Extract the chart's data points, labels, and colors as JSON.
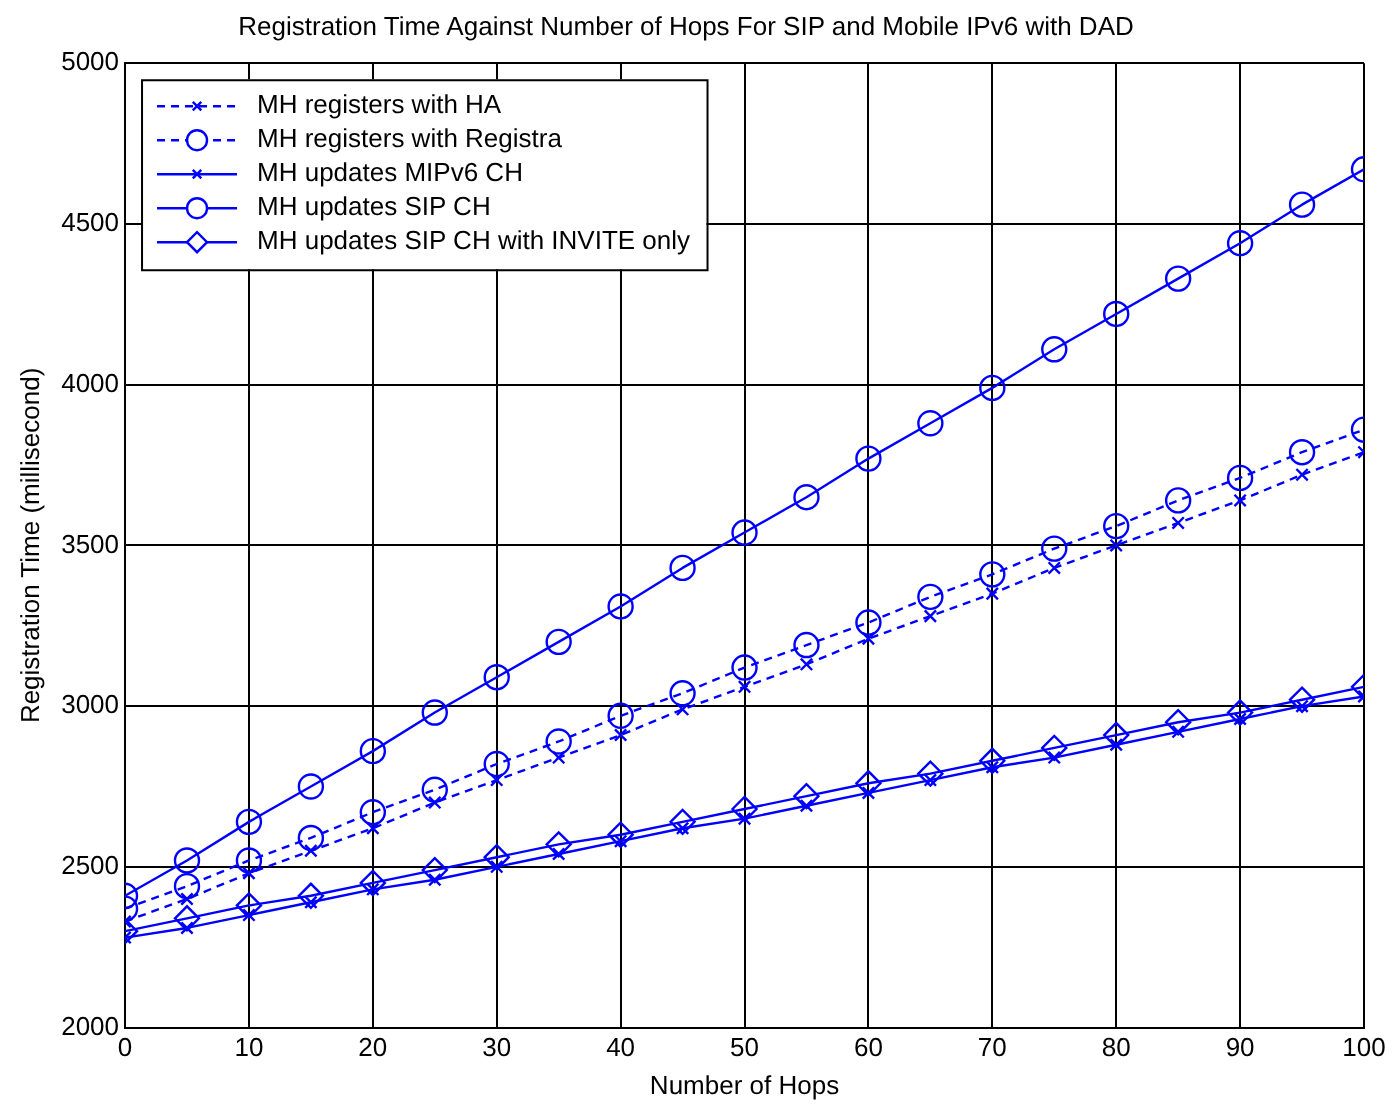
{
  "chart_data": {
    "type": "line",
    "title": "Registration Time Against Number of Hops For SIP and Mobile IPv6 with DAD",
    "xlabel": "Number of Hops",
    "ylabel": "Registration Time (millisecond)",
    "x": [
      0,
      5,
      10,
      15,
      20,
      25,
      30,
      35,
      40,
      45,
      50,
      55,
      60,
      65,
      70,
      75,
      80,
      85,
      90,
      95,
      100
    ],
    "series": [
      {
        "name": "MH registers with HA",
        "color": "#0000ff",
        "marker": "cross",
        "line_style": "dashed",
        "values": [
          2330,
          2400,
          2480,
          2550,
          2620,
          2700,
          2770,
          2840,
          2910,
          2990,
          3060,
          3130,
          3210,
          3280,
          3350,
          3430,
          3500,
          3570,
          3640,
          3720,
          3790
        ]
      },
      {
        "name": "MH registers with Registra",
        "color": "#0000ff",
        "marker": "circle",
        "line_style": "dashed",
        "values": [
          2370,
          2440,
          2520,
          2590,
          2670,
          2740,
          2820,
          2890,
          2970,
          3040,
          3120,
          3190,
          3260,
          3340,
          3410,
          3490,
          3560,
          3640,
          3710,
          3790,
          3860
        ]
      },
      {
        "name": "MH updates MIPv6 CH",
        "color": "#0000ff",
        "marker": "cross",
        "line_style": "solid",
        "values": [
          2280,
          2310,
          2350,
          2390,
          2430,
          2460,
          2500,
          2540,
          2580,
          2620,
          2650,
          2690,
          2730,
          2770,
          2810,
          2840,
          2880,
          2920,
          2960,
          3000,
          3030
        ]
      },
      {
        "name": "MH updates SIP CH",
        "color": "#0000ff",
        "marker": "circle",
        "line_style": "solid",
        "values": [
          2410,
          2520,
          2640,
          2750,
          2860,
          2980,
          3090,
          3200,
          3310,
          3430,
          3540,
          3650,
          3770,
          3880,
          3990,
          4110,
          4220,
          4330,
          4440,
          4560,
          4670
        ]
      },
      {
        "name": "MH updates SIP CH with INVITE only",
        "color": "#0000ff",
        "marker": "diamond",
        "line_style": "solid",
        "values": [
          2300,
          2340,
          2380,
          2410,
          2450,
          2490,
          2530,
          2570,
          2600,
          2640,
          2680,
          2720,
          2760,
          2790,
          2830,
          2870,
          2910,
          2950,
          2980,
          3020,
          3060
        ]
      }
    ],
    "xlim": [
      0,
      100
    ],
    "xticks": [
      0,
      10,
      20,
      30,
      40,
      50,
      60,
      70,
      80,
      90,
      100
    ],
    "ylim": [
      2000,
      5000
    ],
    "yticks": [
      2000,
      2500,
      3000,
      3500,
      4000,
      4500,
      5000
    ],
    "grid": true,
    "legend": "top left"
  }
}
